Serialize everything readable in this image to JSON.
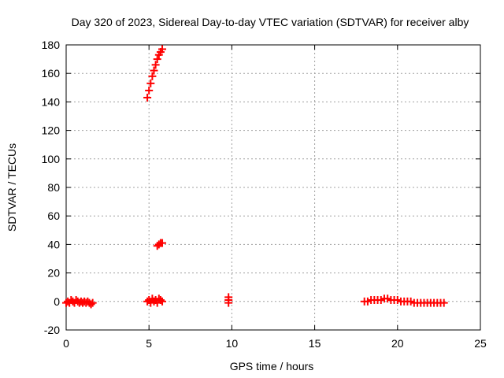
{
  "chart_data": {
    "type": "scatter",
    "title": "Day 320 of 2023, Sidereal Day-to-day VTEC variation (SDTVAR) for receiver alby",
    "xlabel": "GPS time / hours",
    "ylabel": "SDTVAR / TECUs",
    "xlim": [
      0,
      25
    ],
    "ylim": [
      -20,
      180
    ],
    "xticks": [
      "0",
      "5",
      "10",
      "15",
      "20",
      "25"
    ],
    "yticks": [
      "-20",
      "0",
      "20",
      "40",
      "60",
      "80",
      "100",
      "120",
      "140",
      "160",
      "180"
    ],
    "xtick_values": [
      0,
      5,
      10,
      15,
      20,
      25
    ],
    "ytick_values": [
      -20,
      0,
      20,
      40,
      60,
      80,
      100,
      120,
      140,
      160,
      180
    ],
    "grid": true,
    "marker_color": "#ff0000",
    "series": [
      {
        "marker": "plus",
        "points": [
          [
            0.0,
            -1
          ],
          [
            0.1,
            0
          ],
          [
            0.2,
            -1
          ],
          [
            0.3,
            1
          ],
          [
            0.4,
            0
          ],
          [
            0.5,
            -1
          ],
          [
            0.6,
            1
          ],
          [
            0.7,
            0
          ],
          [
            0.8,
            -1
          ],
          [
            0.9,
            0
          ],
          [
            1.0,
            -1
          ],
          [
            1.1,
            0
          ],
          [
            1.2,
            -1
          ],
          [
            1.3,
            0
          ],
          [
            1.4,
            -1
          ],
          [
            1.5,
            -2
          ],
          [
            1.6,
            -1
          ],
          [
            4.9,
            143
          ],
          [
            5.0,
            148
          ],
          [
            5.1,
            153
          ],
          [
            5.2,
            158
          ],
          [
            5.3,
            162
          ],
          [
            5.4,
            166
          ],
          [
            5.5,
            170
          ],
          [
            5.6,
            173
          ],
          [
            5.7,
            175
          ],
          [
            5.8,
            177
          ],
          [
            5.5,
            39
          ],
          [
            5.6,
            40
          ],
          [
            5.7,
            41
          ],
          [
            5.8,
            41
          ],
          [
            4.9,
            0
          ],
          [
            5.0,
            1
          ],
          [
            5.1,
            -1
          ],
          [
            5.2,
            2
          ],
          [
            5.3,
            0
          ],
          [
            5.4,
            1
          ],
          [
            5.5,
            -1
          ],
          [
            5.6,
            2
          ],
          [
            5.7,
            1
          ],
          [
            5.8,
            0
          ],
          [
            9.8,
            3
          ],
          [
            9.8,
            1
          ],
          [
            9.8,
            -1
          ],
          [
            18.0,
            0
          ],
          [
            18.2,
            0
          ],
          [
            18.4,
            1
          ],
          [
            18.6,
            1
          ],
          [
            18.8,
            1
          ],
          [
            19.0,
            1
          ],
          [
            19.2,
            2
          ],
          [
            19.4,
            2
          ],
          [
            19.6,
            1
          ],
          [
            19.8,
            1
          ],
          [
            20.0,
            1
          ],
          [
            20.2,
            0
          ],
          [
            20.4,
            0
          ],
          [
            20.6,
            0
          ],
          [
            20.8,
            0
          ],
          [
            21.0,
            -1
          ],
          [
            21.2,
            -1
          ],
          [
            21.4,
            -1
          ],
          [
            21.6,
            -1
          ],
          [
            21.8,
            -1
          ],
          [
            22.0,
            -1
          ],
          [
            22.2,
            -1
          ],
          [
            22.4,
            -1
          ],
          [
            22.6,
            -1
          ],
          [
            22.8,
            -1
          ]
        ]
      }
    ]
  }
}
